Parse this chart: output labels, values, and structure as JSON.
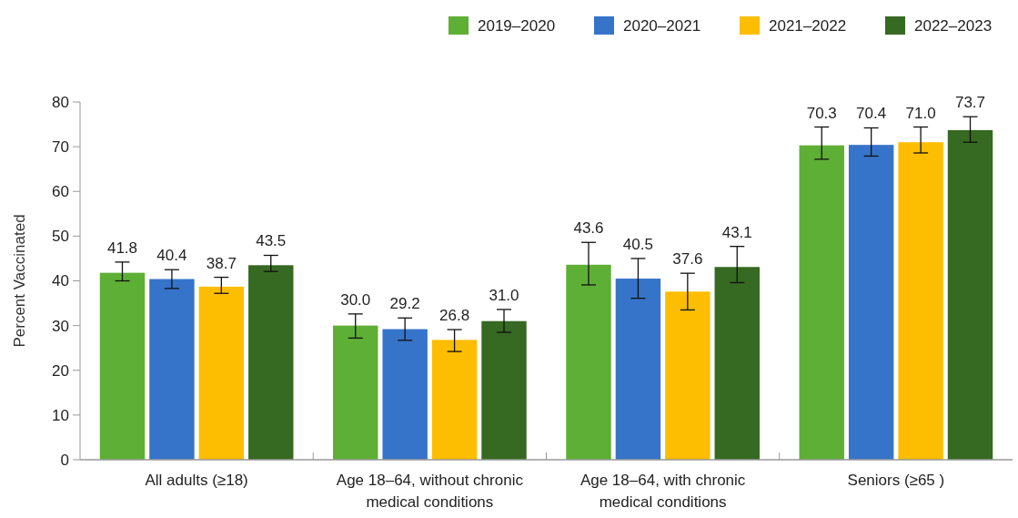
{
  "chart_data": {
    "type": "bar",
    "ylabel": "Percent Vaccinated",
    "categories": [
      "All adults (≥18)",
      "Age 18–64, without chronic medical conditions",
      "Age 18–64, with chronic medical conditions",
      "Seniors (≥65 )"
    ],
    "series": [
      {
        "name": "2019–2020",
        "color": "#5eaf35",
        "values": [
          41.8,
          30.0,
          43.6,
          70.3
        ],
        "value_labels": [
          "41.8",
          "30.0",
          "43.6",
          "70.3"
        ],
        "errors": [
          [
            40.0,
            44.2
          ],
          [
            27.2,
            32.6
          ],
          [
            39.1,
            48.6
          ],
          [
            67.2,
            74.4
          ]
        ]
      },
      {
        "name": "2020–2021",
        "color": "#3674c9",
        "values": [
          40.4,
          29.2,
          40.5,
          70.4
        ],
        "value_labels": [
          "40.4",
          "29.2",
          "40.5",
          "70.4"
        ],
        "errors": [
          [
            38.3,
            42.5
          ],
          [
            26.7,
            31.7
          ],
          [
            36.1,
            45.0
          ],
          [
            67.9,
            74.2
          ]
        ]
      },
      {
        "name": "2021–2022",
        "color": "#fdbd00",
        "values": [
          38.7,
          26.8,
          37.6,
          71.0
        ],
        "value_labels": [
          "38.7",
          "26.8",
          "37.6",
          "71.0"
        ],
        "errors": [
          [
            37.2,
            40.8
          ],
          [
            24.2,
            29.1
          ],
          [
            33.5,
            41.7
          ],
          [
            68.6,
            74.4
          ]
        ]
      },
      {
        "name": "2022–2023",
        "color": "#366921",
        "values": [
          43.5,
          31.0,
          43.1,
          73.7
        ],
        "value_labels": [
          "43.5",
          "31.0",
          "43.1",
          "73.7"
        ],
        "errors": [
          [
            42.1,
            45.7
          ],
          [
            28.5,
            33.6
          ],
          [
            39.6,
            47.7
          ],
          [
            71.0,
            76.7
          ]
        ]
      }
    ],
    "ylim": [
      0,
      80
    ],
    "yticks": [
      0,
      10,
      20,
      30,
      40,
      50,
      60,
      70,
      80
    ],
    "grid": false,
    "legend": "top right"
  }
}
